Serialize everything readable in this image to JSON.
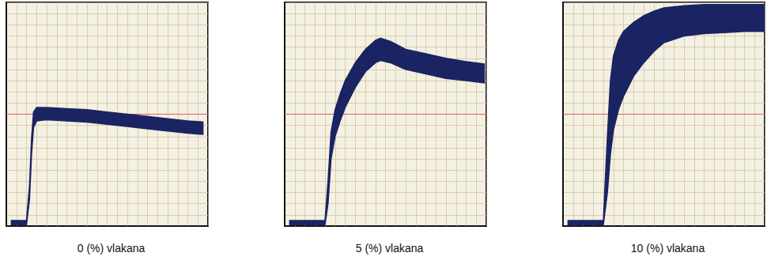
{
  "chart_data": [
    {
      "type": "band",
      "title": "0 (%) vlakana",
      "x": [
        0.5,
        2.0,
        2.3,
        2.5,
        2.7,
        3.0,
        4,
        6,
        8,
        10,
        12,
        14,
        16,
        18,
        19.5
      ],
      "series": [
        {
          "lower": [
            5,
            5,
            120,
            320,
            440,
            470,
            475,
            470,
            465,
            455,
            445,
            435,
            425,
            415,
            410
          ],
          "upper": [
            25,
            25,
            180,
            390,
            510,
            530,
            530,
            525,
            520,
            510,
            500,
            490,
            480,
            470,
            465
          ],
          "color": "#1b2462"
        }
      ],
      "reference_line": {
        "value": 500,
        "color": "#e06060"
      },
      "xlim": [
        0,
        20
      ],
      "ylim": [
        0,
        1000
      ],
      "xticks": [
        0,
        1,
        2,
        3,
        4,
        5,
        6,
        7,
        8,
        9,
        10,
        11,
        12,
        13,
        14,
        15,
        16,
        17,
        18,
        19,
        20
      ],
      "yticks": [
        0,
        50,
        100,
        150,
        200,
        250,
        300,
        350,
        400,
        450,
        500,
        550,
        600,
        650,
        700,
        750,
        800,
        850,
        900,
        950,
        1000
      ],
      "grid": true,
      "tick_labels": false
    },
    {
      "type": "band",
      "title": "5 (%) vlakana",
      "x": [
        0.5,
        4.0,
        4.3,
        4.6,
        5.0,
        5.5,
        6.0,
        7.0,
        8.0,
        9.0,
        9.5,
        10.5,
        12,
        14,
        16,
        18,
        19.8
      ],
      "series": [
        {
          "lower": [
            5,
            5,
            100,
            300,
            400,
            470,
            530,
            620,
            690,
            730,
            740,
            730,
            700,
            680,
            660,
            650,
            640
          ],
          "upper": [
            25,
            25,
            200,
            420,
            520,
            590,
            650,
            730,
            790,
            830,
            840,
            825,
            790,
            770,
            750,
            735,
            725
          ],
          "color": "#1b2462"
        }
      ],
      "reference_line": {
        "value": 500,
        "color": "#e06060"
      },
      "xlim": [
        0,
        20
      ],
      "ylim": [
        0,
        1000
      ],
      "xticks": [
        0,
        1,
        2,
        3,
        4,
        5,
        6,
        7,
        8,
        9,
        10,
        11,
        12,
        13,
        14,
        15,
        16,
        17,
        18,
        19,
        20
      ],
      "yticks": [
        0,
        50,
        100,
        150,
        200,
        250,
        300,
        350,
        400,
        450,
        500,
        550,
        600,
        650,
        700,
        750,
        800,
        850,
        900,
        950,
        1000
      ],
      "grid": true,
      "tick_labels": false
    },
    {
      "type": "band",
      "title": "10 (%) vlakana",
      "x": [
        0.5,
        4.0,
        4.4,
        4.7,
        5.0,
        5.5,
        6.0,
        7.0,
        8.0,
        9.0,
        10,
        12,
        14,
        16,
        18,
        20
      ],
      "series": [
        {
          "lower": [
            5,
            5,
            150,
            320,
            430,
            520,
            580,
            670,
            730,
            780,
            820,
            850,
            860,
            865,
            870,
            870
          ],
          "upper": [
            25,
            25,
            400,
            650,
            760,
            830,
            870,
            910,
            940,
            960,
            975,
            985,
            990,
            990,
            990,
            990
          ],
          "color": "#1b2462"
        }
      ],
      "reference_line": {
        "value": 500,
        "color": "#e06060"
      },
      "xlim": [
        0,
        20
      ],
      "ylim": [
        0,
        1000
      ],
      "xticks": [
        0,
        1,
        2,
        3,
        4,
        5,
        6,
        7,
        8,
        9,
        10,
        11,
        12,
        13,
        14,
        15,
        16,
        17,
        18,
        19,
        20
      ],
      "yticks": [
        0,
        50,
        100,
        150,
        200,
        250,
        300,
        350,
        400,
        450,
        500,
        550,
        600,
        650,
        700,
        750,
        800,
        850,
        900,
        950,
        1000
      ],
      "grid": true,
      "tick_labels": false
    }
  ]
}
